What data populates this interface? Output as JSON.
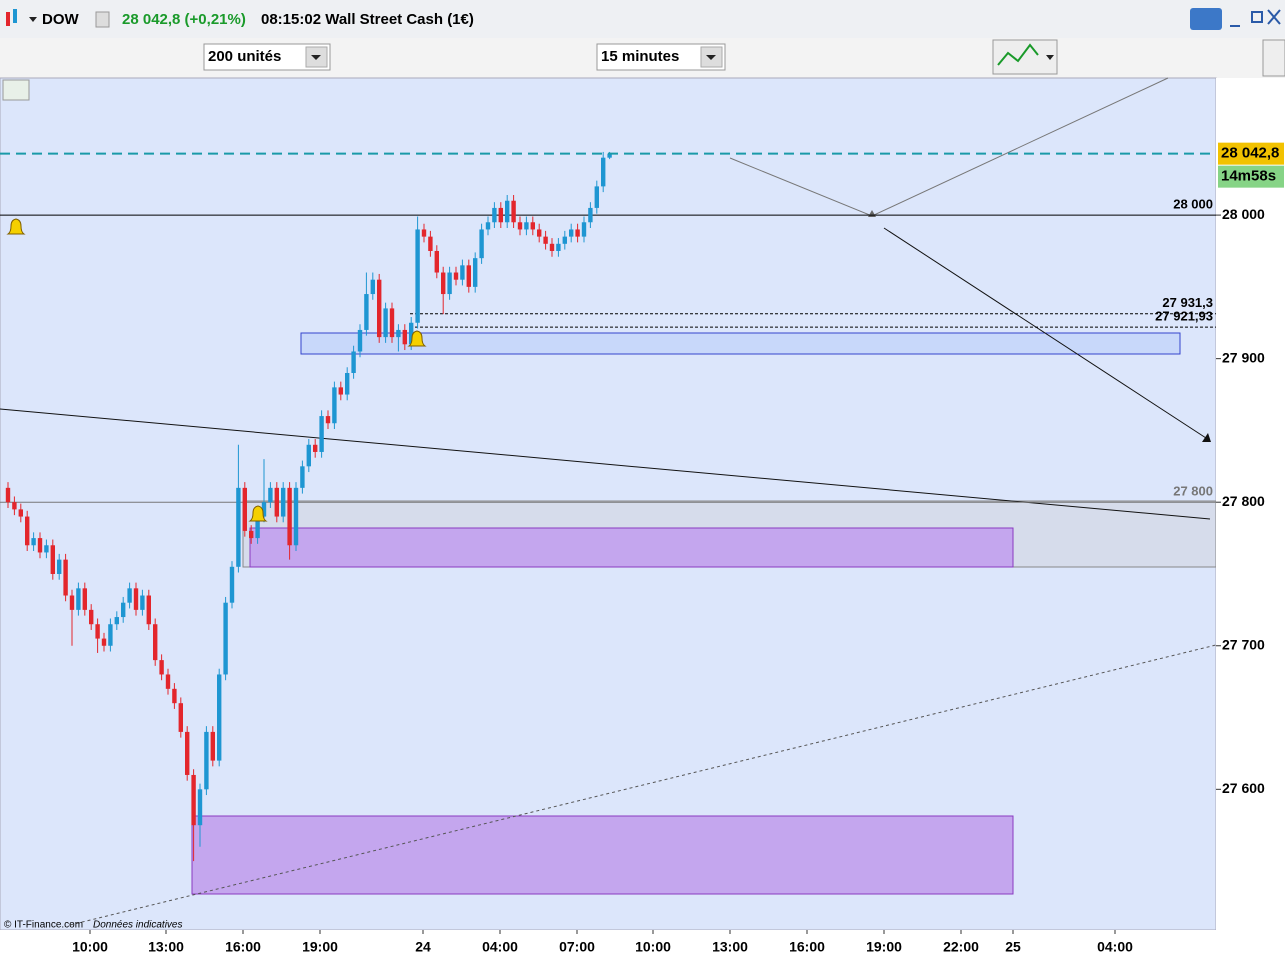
{
  "header": {
    "symbol": "DOW",
    "price": "28 042,8 (+0,21%)",
    "time_name": "08:15:02 Wall Street Cash (1€)",
    "units": "200 unités",
    "interval": "15 minutes",
    "copyright": "© IT-Finance.com",
    "note": "Données indicatives"
  },
  "chart_data": {
    "type": "candlestick",
    "ylim": [
      27502,
      28095.5
    ],
    "yticks": [
      {
        "value": 28000,
        "label": "28 000"
      },
      {
        "value": 27900,
        "label": "27 900"
      },
      {
        "value": 27800,
        "label": "27 800"
      },
      {
        "value": 27700,
        "label": "27 700"
      },
      {
        "value": 27600,
        "label": "27 600"
      }
    ],
    "xticks": [
      "10:00",
      "13:00",
      "16:00",
      "19:00",
      "24",
      "04:00",
      "07:00",
      "10:00",
      "13:00",
      "16:00",
      "19:00",
      "22:00",
      "25",
      "04:00"
    ],
    "up_color": "#1e96d2",
    "down_color": "#e3262c",
    "open": [
      27810,
      27800,
      27795,
      27790,
      27770,
      27775,
      27765,
      27770,
      27750,
      27760,
      27735,
      27725,
      27740,
      27725,
      27715,
      27705,
      27700,
      27715,
      27720,
      27730,
      27740,
      27725,
      27735,
      27715,
      27690,
      27680,
      27670,
      27660,
      27640,
      27610,
      27575,
      27600,
      27640,
      27620,
      27680,
      27730,
      27755,
      27810,
      27780,
      27775,
      27790,
      27800,
      27810,
      27790,
      27810,
      27770,
      27810,
      27825,
      27840,
      27835,
      27860,
      27855,
      27880,
      27875,
      27890,
      27905,
      27920,
      27945,
      27955,
      27915,
      27935,
      27915,
      27920,
      27910,
      27925,
      27990,
      27985,
      27975,
      27960,
      27945,
      27960,
      27955,
      27965,
      27950,
      27970,
      27990,
      27995,
      28005,
      27995,
      28010,
      27995,
      27990,
      27995,
      27990,
      27985,
      27980,
      27975,
      27980,
      27985,
      27990,
      27985,
      27995,
      28005,
      28020,
      28040
    ],
    "high": [
      27814,
      27804,
      27799,
      27794,
      27779,
      27779,
      27774,
      27774,
      27764,
      27764,
      27739,
      27744,
      27744,
      27729,
      27719,
      27709,
      27719,
      27724,
      27734,
      27744,
      27744,
      27739,
      27739,
      27719,
      27694,
      27684,
      27674,
      27664,
      27644,
      27614,
      27604,
      27644,
      27644,
      27684,
      27734,
      27759,
      27840,
      27814,
      27784,
      27794,
      27830,
      27814,
      27814,
      27814,
      27814,
      27814,
      27829,
      27844,
      27844,
      27864,
      27864,
      27884,
      27884,
      27894,
      27909,
      27924,
      27960,
      27960,
      27959,
      27939,
      27939,
      27924,
      27924,
      27929,
      27999,
      27994,
      27989,
      27979,
      27964,
      27964,
      27964,
      27969,
      27969,
      27974,
      27994,
      27999,
      28009,
      28009,
      28014,
      28014,
      27999,
      27999,
      27999,
      27994,
      27989,
      27984,
      27984,
      27989,
      27994,
      27994,
      27999,
      28009,
      28024,
      28044,
      28044
    ],
    "low": [
      27796,
      27791,
      27786,
      27766,
      27766,
      27761,
      27761,
      27746,
      27746,
      27731,
      27700,
      27721,
      27721,
      27711,
      27695,
      27696,
      27696,
      27711,
      27716,
      27726,
      27721,
      27721,
      27711,
      27686,
      27676,
      27666,
      27656,
      27636,
      27606,
      27550,
      27560,
      27596,
      27616,
      27616,
      27676,
      27726,
      27751,
      27776,
      27771,
      27771,
      27786,
      27796,
      27786,
      27786,
      27760,
      27766,
      27806,
      27821,
      27831,
      27831,
      27851,
      27851,
      27871,
      27871,
      27886,
      27901,
      27916,
      27941,
      27911,
      27911,
      27911,
      27905,
      27906,
      27906,
      27921,
      27981,
      27971,
      27956,
      27931,
      27941,
      27951,
      27951,
      27946,
      27946,
      27966,
      27986,
      27991,
      27991,
      27991,
      27991,
      27986,
      27986,
      27986,
      27981,
      27976,
      27971,
      27971,
      27976,
      27981,
      27981,
      27981,
      27991,
      28001,
      28016,
      28039
    ],
    "close": [
      27800,
      27795,
      27790,
      27770,
      27775,
      27765,
      27770,
      27750,
      27760,
      27735,
      27725,
      27740,
      27725,
      27715,
      27705,
      27700,
      27715,
      27720,
      27730,
      27740,
      27725,
      27735,
      27715,
      27690,
      27680,
      27670,
      27660,
      27640,
      27610,
      27575,
      27600,
      27640,
      27620,
      27680,
      27730,
      27755,
      27810,
      27780,
      27775,
      27790,
      27800,
      27810,
      27790,
      27810,
      27770,
      27810,
      27825,
      27840,
      27835,
      27860,
      27855,
      27880,
      27875,
      27890,
      27905,
      27920,
      27945,
      27955,
      27915,
      27935,
      27915,
      27920,
      27910,
      27925,
      27990,
      27985,
      27975,
      27960,
      27945,
      27960,
      27955,
      27965,
      27950,
      27970,
      27990,
      27995,
      28005,
      27995,
      28010,
      27995,
      27990,
      27995,
      27990,
      27985,
      27980,
      27975,
      27980,
      27985,
      27990,
      27985,
      27995,
      28005,
      28020,
      28040,
      28042.8
    ],
    "levels": [
      {
        "value": 28000,
        "label": "28 000",
        "color": "#000000"
      },
      {
        "value": 27931.3,
        "label": "27 931,3",
        "color": "#000000",
        "dashed": true
      },
      {
        "value": 27921.93,
        "label": "27 921,93",
        "color": "#000000",
        "dashed": true
      },
      {
        "value": 27800,
        "label": "27 800",
        "color": "#777777"
      }
    ],
    "last": {
      "value": 28042.8,
      "label": "28 042,8",
      "color": "#1a9aa8"
    },
    "timer": "14m58s"
  }
}
